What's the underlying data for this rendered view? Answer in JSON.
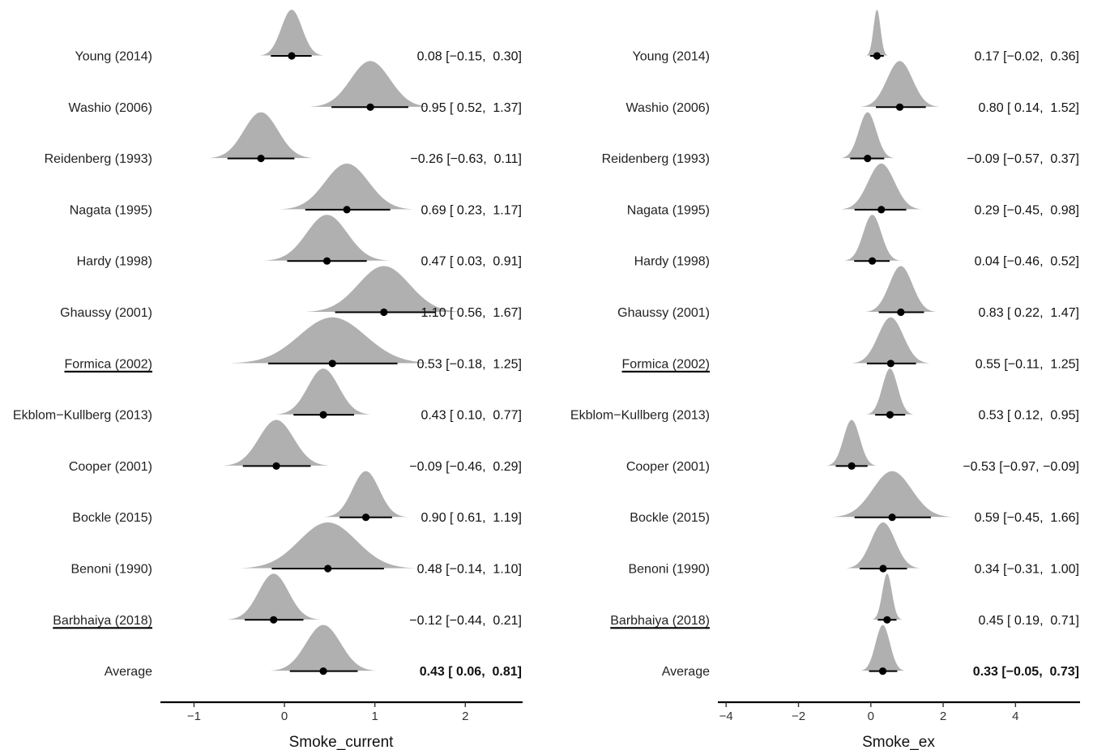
{
  "chart_data": [
    {
      "type": "forest",
      "xlabel": "Smoke_current",
      "xlim": [
        -1.3,
        2.58
      ],
      "xticks": [
        -1,
        0,
        1,
        2
      ],
      "xtick_labels": [
        "−1",
        "0",
        "1",
        "2"
      ],
      "density_color": "#b0b0b0",
      "studies": [
        {
          "label": "Young (2014)",
          "mean": 0.08,
          "lower": -0.15,
          "upper": 0.3,
          "ci_text": "0.08 [−0.15,  0.30]",
          "underline": false,
          "bold": false
        },
        {
          "label": "Washio (2006)",
          "mean": 0.95,
          "lower": 0.52,
          "upper": 1.37,
          "ci_text": "0.95 [ 0.52,  1.37]",
          "underline": false,
          "bold": false
        },
        {
          "label": "Reidenberg (1993)",
          "mean": -0.26,
          "lower": -0.63,
          "upper": 0.11,
          "ci_text": "−0.26 [−0.63,  0.11]",
          "underline": false,
          "bold": false
        },
        {
          "label": "Nagata (1995)",
          "mean": 0.69,
          "lower": 0.23,
          "upper": 1.17,
          "ci_text": "0.69 [ 0.23,  1.17]",
          "underline": false,
          "bold": false
        },
        {
          "label": "Hardy (1998)",
          "mean": 0.47,
          "lower": 0.03,
          "upper": 0.91,
          "ci_text": "0.47 [ 0.03,  0.91]",
          "underline": false,
          "bold": false
        },
        {
          "label": "Ghaussy (2001)",
          "mean": 1.1,
          "lower": 0.56,
          "upper": 1.67,
          "ci_text": "1.10 [ 0.56,  1.67]",
          "underline": false,
          "bold": false
        },
        {
          "label": "Formica (2002)",
          "mean": 0.53,
          "lower": -0.18,
          "upper": 1.25,
          "ci_text": "0.53 [−0.18,  1.25]",
          "underline": true,
          "bold": false
        },
        {
          "label": "Ekblom−Kullberg (2013)",
          "mean": 0.43,
          "lower": 0.1,
          "upper": 0.77,
          "ci_text": "0.43 [ 0.10,  0.77]",
          "underline": false,
          "bold": false
        },
        {
          "label": "Cooper (2001)",
          "mean": -0.09,
          "lower": -0.46,
          "upper": 0.29,
          "ci_text": "−0.09 [−0.46,  0.29]",
          "underline": false,
          "bold": false
        },
        {
          "label": "Bockle (2015)",
          "mean": 0.9,
          "lower": 0.61,
          "upper": 1.19,
          "ci_text": "0.90 [ 0.61,  1.19]",
          "underline": false,
          "bold": false
        },
        {
          "label": "Benoni (1990)",
          "mean": 0.48,
          "lower": -0.14,
          "upper": 1.1,
          "ci_text": "0.48 [−0.14,  1.10]",
          "underline": false,
          "bold": false
        },
        {
          "label": "Barbhaiya (2018)",
          "mean": -0.12,
          "lower": -0.44,
          "upper": 0.21,
          "ci_text": "−0.12 [−0.44,  0.21]",
          "underline": true,
          "bold": false
        },
        {
          "label": "Average",
          "mean": 0.43,
          "lower": 0.06,
          "upper": 0.81,
          "ci_text": "0.43 [ 0.06,  0.81]",
          "underline": false,
          "bold": true
        }
      ]
    },
    {
      "type": "forest",
      "xlabel": "Smoke_ex",
      "xlim": [
        -4.05,
        5.65
      ],
      "xticks": [
        -4,
        -2,
        0,
        2,
        4
      ],
      "xtick_labels": [
        "−4",
        "−2",
        "0",
        "2",
        "4"
      ],
      "density_color": "#b0b0b0",
      "studies": [
        {
          "label": "Young (2014)",
          "mean": 0.17,
          "lower": -0.02,
          "upper": 0.36,
          "ci_text": "0.17 [−0.02,  0.36]",
          "underline": false,
          "bold": false
        },
        {
          "label": "Washio (2006)",
          "mean": 0.8,
          "lower": 0.14,
          "upper": 1.52,
          "ci_text": "0.80 [ 0.14,  1.52]",
          "underline": false,
          "bold": false
        },
        {
          "label": "Reidenberg (1993)",
          "mean": -0.09,
          "lower": -0.57,
          "upper": 0.37,
          "ci_text": "−0.09 [−0.57,  0.37]",
          "underline": false,
          "bold": false
        },
        {
          "label": "Nagata (1995)",
          "mean": 0.29,
          "lower": -0.45,
          "upper": 0.98,
          "ci_text": "0.29 [−0.45,  0.98]",
          "underline": false,
          "bold": false
        },
        {
          "label": "Hardy (1998)",
          "mean": 0.04,
          "lower": -0.46,
          "upper": 0.52,
          "ci_text": "0.04 [−0.46,  0.52]",
          "underline": false,
          "bold": false
        },
        {
          "label": "Ghaussy (2001)",
          "mean": 0.83,
          "lower": 0.22,
          "upper": 1.47,
          "ci_text": "0.83 [ 0.22,  1.47]",
          "underline": false,
          "bold": false
        },
        {
          "label": "Formica (2002)",
          "mean": 0.55,
          "lower": -0.11,
          "upper": 1.25,
          "ci_text": "0.55 [−0.11,  1.25]",
          "underline": true,
          "bold": false
        },
        {
          "label": "Ekblom−Kullberg (2013)",
          "mean": 0.53,
          "lower": 0.12,
          "upper": 0.95,
          "ci_text": "0.53 [ 0.12,  0.95]",
          "underline": false,
          "bold": false
        },
        {
          "label": "Cooper (2001)",
          "mean": -0.53,
          "lower": -0.97,
          "upper": -0.09,
          "ci_text": "−0.53 [−0.97, −0.09]",
          "underline": false,
          "bold": false
        },
        {
          "label": "Bockle (2015)",
          "mean": 0.59,
          "lower": -0.45,
          "upper": 1.66,
          "ci_text": "0.59 [−0.45,  1.66]",
          "underline": false,
          "bold": false
        },
        {
          "label": "Benoni (1990)",
          "mean": 0.34,
          "lower": -0.31,
          "upper": 1.0,
          "ci_text": "0.34 [−0.31,  1.00]",
          "underline": false,
          "bold": false
        },
        {
          "label": "Barbhaiya (2018)",
          "mean": 0.45,
          "lower": 0.19,
          "upper": 0.71,
          "ci_text": "0.45 [ 0.19,  0.71]",
          "underline": true,
          "bold": false
        },
        {
          "label": "Average",
          "mean": 0.33,
          "lower": -0.05,
          "upper": 0.73,
          "ci_text": "0.33 [−0.05,  0.73]",
          "underline": false,
          "bold": true
        }
      ]
    }
  ]
}
